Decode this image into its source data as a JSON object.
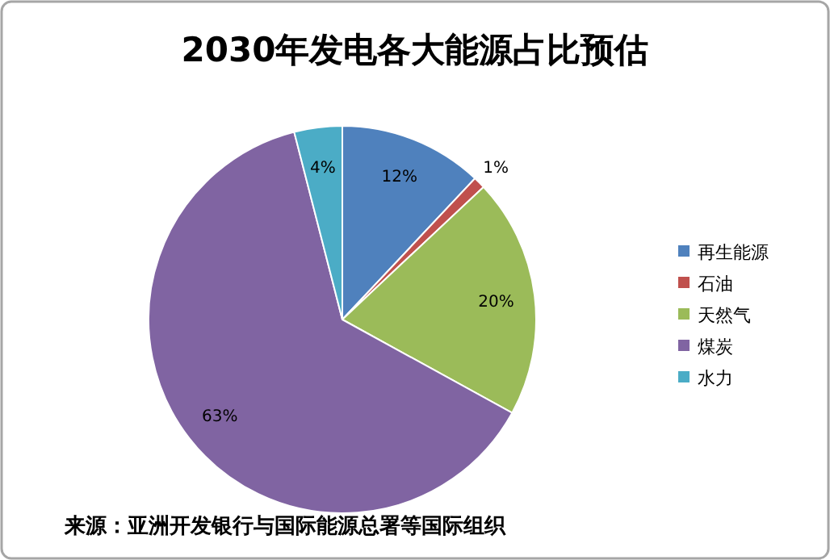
{
  "chart_data": {
    "type": "pie",
    "title": "2030年发电各大能源占比预估",
    "categories": [
      "再生能源",
      "石油",
      "天然气",
      "煤炭",
      "水力"
    ],
    "values": [
      12,
      1,
      20,
      63,
      4
    ],
    "colors": [
      "#4f81bd",
      "#c0504d",
      "#9bbb59",
      "#8064a2",
      "#4bacc6"
    ],
    "value_labels": [
      "12%",
      "1%",
      "20%",
      "63%",
      "4%"
    ],
    "legend": "right",
    "annotations": [
      "来源：亚洲开发银行与国际能源总署等国际组织"
    ]
  }
}
